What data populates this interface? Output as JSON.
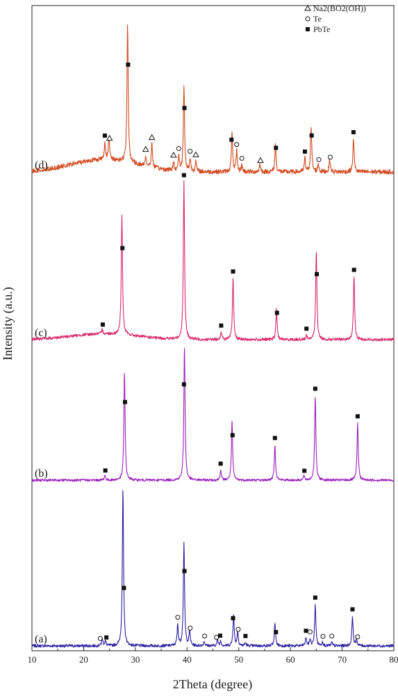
{
  "chart_data": {
    "type": "line",
    "xlabel": "2Theta (degree)",
    "ylabel": "Intensity (a.u.)",
    "xlim": [
      10,
      80
    ],
    "xticks": [
      10,
      20,
      30,
      40,
      50,
      60,
      70,
      80
    ],
    "grid": false,
    "legend_position": "top-right",
    "legend": [
      {
        "marker": "triangle",
        "label": "Na2(BO2(OH))"
      },
      {
        "marker": "circle",
        "label": "Te"
      },
      {
        "marker": "square",
        "label": "PbTe"
      }
    ],
    "series": [
      {
        "label": "(a)",
        "color": "#2b1fa0",
        "baseline": 0.0,
        "noise": 0.35,
        "peaks": [
          {
            "x": 23.6,
            "h": 0.9
          },
          {
            "x": 24.2,
            "h": 0.6
          },
          {
            "x": 27.6,
            "h": 18.8
          },
          {
            "x": 38.2,
            "h": 2.5
          },
          {
            "x": 39.4,
            "h": 12.3
          },
          {
            "x": 40.5,
            "h": 1.8
          },
          {
            "x": 43.3,
            "h": 0.6
          },
          {
            "x": 45.9,
            "h": 0.7
          },
          {
            "x": 46.5,
            "h": 0.6
          },
          {
            "x": 49.0,
            "h": 3.8
          },
          {
            "x": 49.8,
            "h": 1.7
          },
          {
            "x": 51.3,
            "h": 0.4
          },
          {
            "x": 57.0,
            "h": 2.7
          },
          {
            "x": 63.0,
            "h": 1.0
          },
          {
            "x": 63.8,
            "h": 0.8
          },
          {
            "x": 64.8,
            "h": 5.0
          },
          {
            "x": 66.2,
            "h": 0.5
          },
          {
            "x": 68.0,
            "h": 0.4
          },
          {
            "x": 72.0,
            "h": 3.6
          },
          {
            "x": 72.8,
            "h": 0.8
          }
        ],
        "markers": [
          {
            "x": 23.2,
            "marker": "circle"
          },
          {
            "x": 24.4,
            "marker": "square"
          },
          {
            "x": 27.8,
            "marker": "square"
          },
          {
            "x": 38.2,
            "marker": "circle"
          },
          {
            "x": 39.5,
            "marker": "square"
          },
          {
            "x": 40.6,
            "marker": "circle"
          },
          {
            "x": 43.4,
            "marker": "circle"
          },
          {
            "x": 45.7,
            "marker": "circle"
          },
          {
            "x": 46.4,
            "marker": "square"
          },
          {
            "x": 48.9,
            "marker": "square"
          },
          {
            "x": 49.9,
            "marker": "circle"
          },
          {
            "x": 51.3,
            "marker": "square"
          },
          {
            "x": 57.2,
            "marker": "square"
          },
          {
            "x": 63.0,
            "marker": "square"
          },
          {
            "x": 63.8,
            "marker": "circle"
          },
          {
            "x": 64.8,
            "marker": "square"
          },
          {
            "x": 66.3,
            "marker": "circle"
          },
          {
            "x": 68.0,
            "marker": "circle"
          },
          {
            "x": 72.0,
            "marker": "square"
          },
          {
            "x": 73.0,
            "marker": "circle"
          }
        ]
      },
      {
        "label": "(b)",
        "color": "#9b1fbb",
        "baseline": 0.0,
        "noise": 0.3,
        "peaks": [
          {
            "x": 24.1,
            "h": 0.6
          },
          {
            "x": 27.9,
            "h": 13.0
          },
          {
            "x": 39.5,
            "h": 16.2
          },
          {
            "x": 46.5,
            "h": 1.2
          },
          {
            "x": 48.7,
            "h": 7.0
          },
          {
            "x": 57.0,
            "h": 4.3
          },
          {
            "x": 62.6,
            "h": 0.5
          },
          {
            "x": 64.8,
            "h": 10.2
          },
          {
            "x": 73.0,
            "h": 6.9
          }
        ],
        "markers": [
          {
            "x": 24.2,
            "marker": "square"
          },
          {
            "x": 28.0,
            "marker": "square"
          },
          {
            "x": 39.4,
            "marker": "square"
          },
          {
            "x": 46.5,
            "marker": "square"
          },
          {
            "x": 48.8,
            "marker": "square"
          },
          {
            "x": 57.0,
            "marker": "square"
          },
          {
            "x": 62.7,
            "marker": "square"
          },
          {
            "x": 64.8,
            "marker": "square"
          },
          {
            "x": 73.0,
            "marker": "square"
          }
        ]
      },
      {
        "label": "(c)",
        "color": "#d8276a",
        "baseline": 0.7,
        "noise": 0.35,
        "peaks": [
          {
            "x": 23.6,
            "h": 0.5
          },
          {
            "x": 27.4,
            "h": 14.5
          },
          {
            "x": 39.4,
            "h": 18.9
          },
          {
            "x": 46.6,
            "h": 0.9
          },
          {
            "x": 48.9,
            "h": 7.4
          },
          {
            "x": 57.3,
            "h": 3.7
          },
          {
            "x": 63.1,
            "h": 0.5
          },
          {
            "x": 65.0,
            "h": 10.7
          },
          {
            "x": 72.3,
            "h": 7.6
          }
        ],
        "markers": [
          {
            "x": 23.7,
            "marker": "square"
          },
          {
            "x": 27.5,
            "marker": "square"
          },
          {
            "x": 39.4,
            "marker": "square"
          },
          {
            "x": 46.6,
            "marker": "square"
          },
          {
            "x": 48.9,
            "marker": "square"
          },
          {
            "x": 57.4,
            "marker": "square"
          },
          {
            "x": 63.1,
            "marker": "square"
          },
          {
            "x": 65.1,
            "marker": "square"
          },
          {
            "x": 72.3,
            "marker": "square"
          }
        ]
      },
      {
        "label": "(d)",
        "color": "#d24a20",
        "baseline": 1.5,
        "noise": 0.55,
        "peaks": [
          {
            "x": 24.1,
            "h": 2.0
          },
          {
            "x": 24.9,
            "h": 2.6
          },
          {
            "x": 28.5,
            "h": 16.5
          },
          {
            "x": 32.0,
            "h": 1.2
          },
          {
            "x": 33.2,
            "h": 2.8
          },
          {
            "x": 37.4,
            "h": 1.0
          },
          {
            "x": 38.4,
            "h": 1.7
          },
          {
            "x": 39.4,
            "h": 10.2
          },
          {
            "x": 40.6,
            "h": 1.5
          },
          {
            "x": 41.7,
            "h": 1.2
          },
          {
            "x": 48.7,
            "h": 4.6
          },
          {
            "x": 49.6,
            "h": 2.4
          },
          {
            "x": 50.6,
            "h": 0.8
          },
          {
            "x": 54.1,
            "h": 0.9
          },
          {
            "x": 57.1,
            "h": 3.2
          },
          {
            "x": 62.8,
            "h": 1.6
          },
          {
            "x": 64.0,
            "h": 5.4
          },
          {
            "x": 65.4,
            "h": 1.0
          },
          {
            "x": 67.6,
            "h": 1.5
          },
          {
            "x": 72.2,
            "h": 4.0
          }
        ],
        "markers": [
          {
            "x": 24.1,
            "marker": "square"
          },
          {
            "x": 25.0,
            "marker": "triangle"
          },
          {
            "x": 28.6,
            "marker": "square"
          },
          {
            "x": 32.0,
            "marker": "triangle"
          },
          {
            "x": 33.2,
            "marker": "triangle"
          },
          {
            "x": 37.4,
            "marker": "triangle"
          },
          {
            "x": 38.4,
            "marker": "circle"
          },
          {
            "x": 39.5,
            "marker": "square"
          },
          {
            "x": 40.6,
            "marker": "circle"
          },
          {
            "x": 41.7,
            "marker": "triangle"
          },
          {
            "x": 48.6,
            "marker": "square"
          },
          {
            "x": 49.6,
            "marker": "circle"
          },
          {
            "x": 50.6,
            "marker": "circle"
          },
          {
            "x": 54.2,
            "marker": "triangle"
          },
          {
            "x": 57.2,
            "marker": "square"
          },
          {
            "x": 62.8,
            "marker": "square"
          },
          {
            "x": 64.1,
            "marker": "square"
          },
          {
            "x": 65.5,
            "marker": "circle"
          },
          {
            "x": 67.7,
            "marker": "circle"
          },
          {
            "x": 72.2,
            "marker": "square"
          }
        ]
      }
    ]
  }
}
